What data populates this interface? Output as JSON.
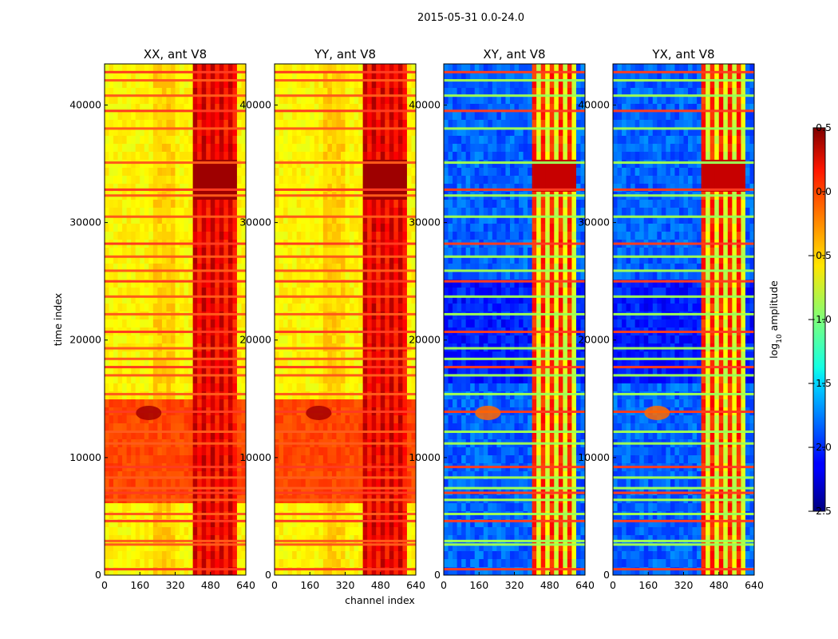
{
  "figure": {
    "suptitle": "2015-05-31 0.0-24.0"
  },
  "chart_data": [
    {
      "type": "heatmap",
      "title": "XX, ant V8",
      "xlabel": "",
      "ylabel": "time index",
      "xlim": [
        0,
        640
      ],
      "ylim": [
        0,
        43500
      ],
      "xticks": [
        0,
        160,
        320,
        480,
        640
      ],
      "yticks": [
        0,
        10000,
        20000,
        30000,
        40000
      ],
      "variant": "parallel"
    },
    {
      "type": "heatmap",
      "title": "YY, ant V8",
      "xlabel": "channel index",
      "ylabel": "",
      "xlim": [
        0,
        640
      ],
      "ylim": [
        0,
        43500
      ],
      "xticks": [
        0,
        160,
        320,
        480,
        640
      ],
      "yticks": [
        0,
        10000,
        20000,
        30000,
        40000
      ],
      "variant": "parallel"
    },
    {
      "type": "heatmap",
      "title": "XY, ant V8",
      "xlabel": "",
      "ylabel": "",
      "xlim": [
        0,
        640
      ],
      "ylim": [
        0,
        43500
      ],
      "xticks": [
        0,
        160,
        320,
        480,
        640
      ],
      "yticks": [
        0,
        10000,
        20000,
        30000,
        40000
      ],
      "variant": "cross"
    },
    {
      "type": "heatmap",
      "title": "YX, ant V8",
      "xlabel": "",
      "ylabel": "",
      "xlim": [
        0,
        640
      ],
      "ylim": [
        0,
        43500
      ],
      "xticks": [
        0,
        160,
        320,
        480,
        640
      ],
      "yticks": [
        0,
        10000,
        20000,
        30000,
        40000
      ],
      "variant": "cross"
    }
  ],
  "colorbar": {
    "label_main": "log",
    "label_sub": "10",
    "label_rest": " amplitude",
    "range": [
      -2.5,
      0.5
    ],
    "ticks": [
      "0.5",
      "0.0",
      "−0.5",
      "−1.0",
      "−1.5",
      "−2.0",
      "−2.5"
    ],
    "tick_values": [
      0.5,
      0.0,
      -0.5,
      -1.0,
      -1.5,
      -2.0,
      -2.5
    ],
    "colormap": "jet"
  }
}
